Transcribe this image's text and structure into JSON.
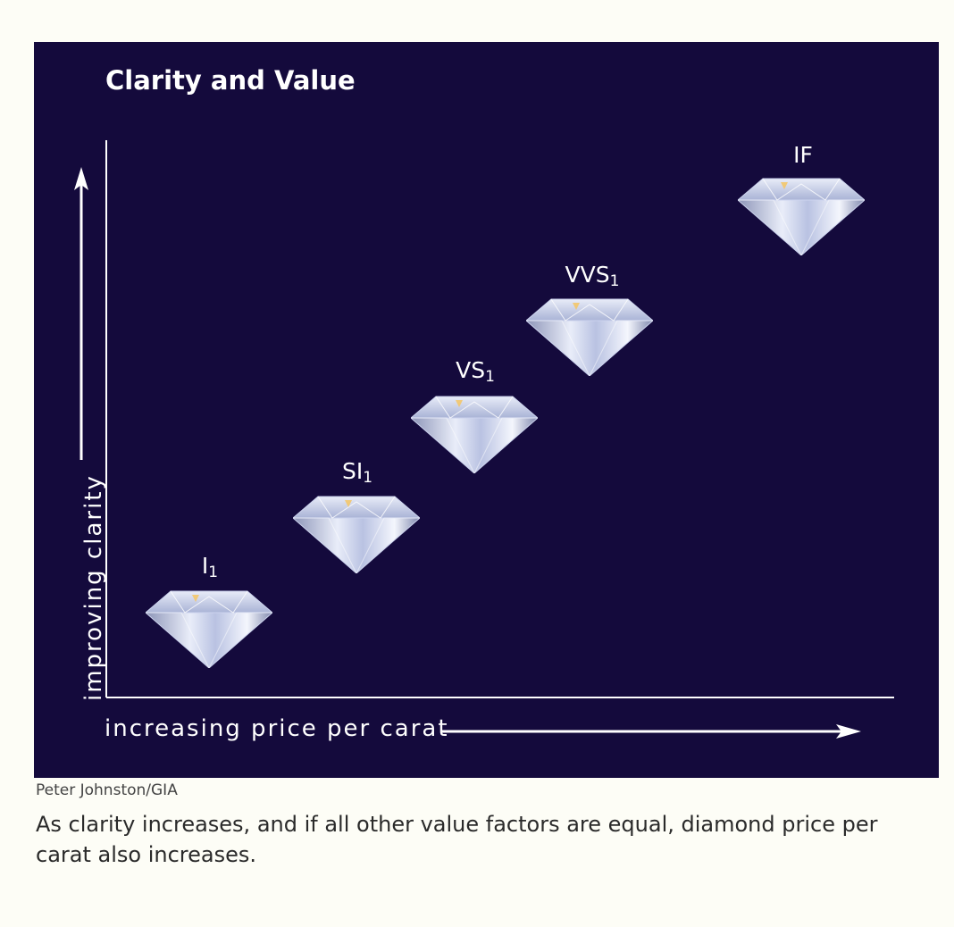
{
  "figure": {
    "title": "Clarity and Value",
    "y_axis_label": "improving clarity",
    "x_axis_label": "increasing price per carat",
    "grades": [
      {
        "base": "I",
        "sub": "1"
      },
      {
        "base": "SI",
        "sub": "1"
      },
      {
        "base": "VS",
        "sub": "1"
      },
      {
        "base": "VVS",
        "sub": "1"
      },
      {
        "base": "IF",
        "sub": ""
      }
    ],
    "background_color": "#140a3c",
    "diamond_icon": "diamond-icon"
  },
  "credit": "Peter Johnston/GIA",
  "caption": "As clarity increases, and if all other value factors are equal, diamond price per carat also increases."
}
